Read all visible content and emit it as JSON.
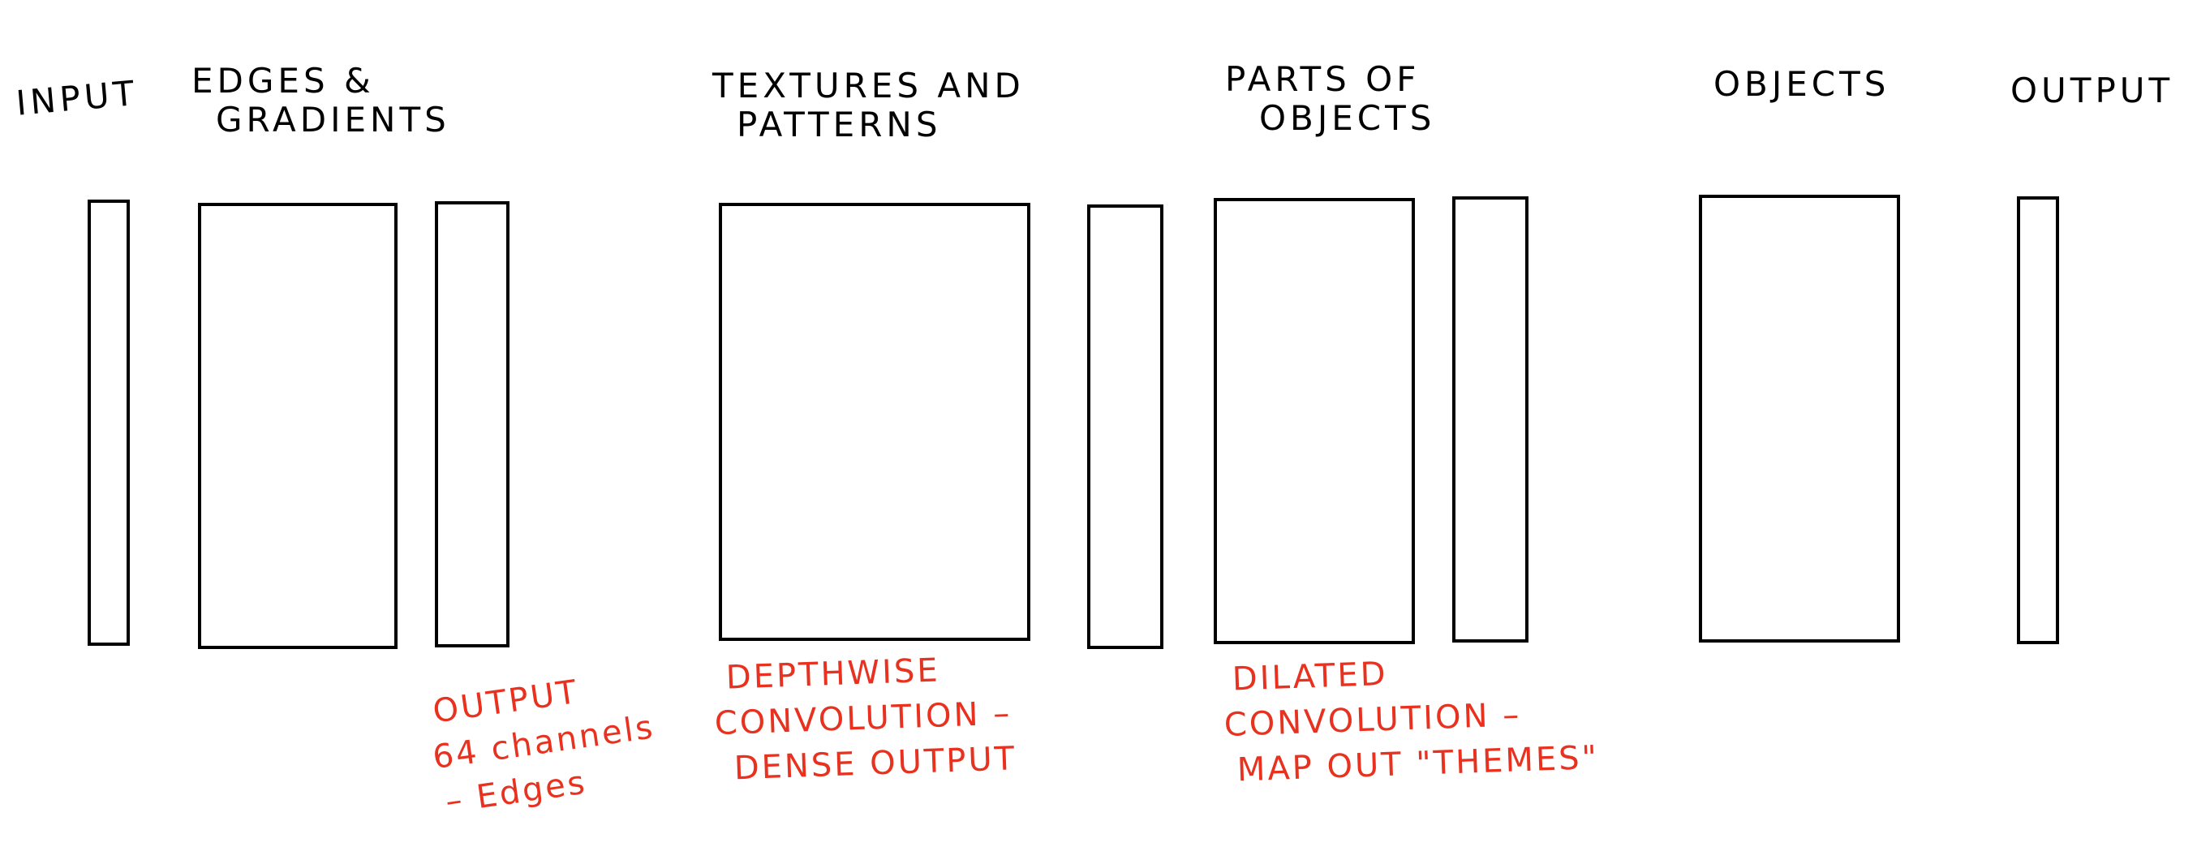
{
  "stages": [
    {
      "id": "input",
      "lines": [
        "INPUT"
      ]
    },
    {
      "id": "edges",
      "lines": [
        "EDGES &",
        "GRADIENTS"
      ]
    },
    {
      "id": "textures",
      "lines": [
        "TEXTURES AND",
        "PATTERNS"
      ]
    },
    {
      "id": "parts",
      "lines": [
        "PARTS OF",
        "OBJECTS"
      ]
    },
    {
      "id": "objects",
      "lines": [
        "OBJECTS"
      ]
    },
    {
      "id": "output",
      "lines": [
        "OUTPUT"
      ]
    }
  ],
  "annotations": [
    {
      "id": "edges-note",
      "lines": [
        "OUTPUT",
        "64 channels",
        "– Edges"
      ]
    },
    {
      "id": "depthwise-note",
      "lines": [
        "DEPTHWISE",
        "CONVOLUTION –",
        "DENSE OUTPUT"
      ]
    },
    {
      "id": "dilated-note",
      "lines": [
        "DILATED",
        "CONVOLUTION –",
        "MAP OUT \"THEMES\""
      ]
    }
  ],
  "colors": {
    "stroke": "#000000",
    "annotation": "#e8321f",
    "background": "#ffffff"
  }
}
